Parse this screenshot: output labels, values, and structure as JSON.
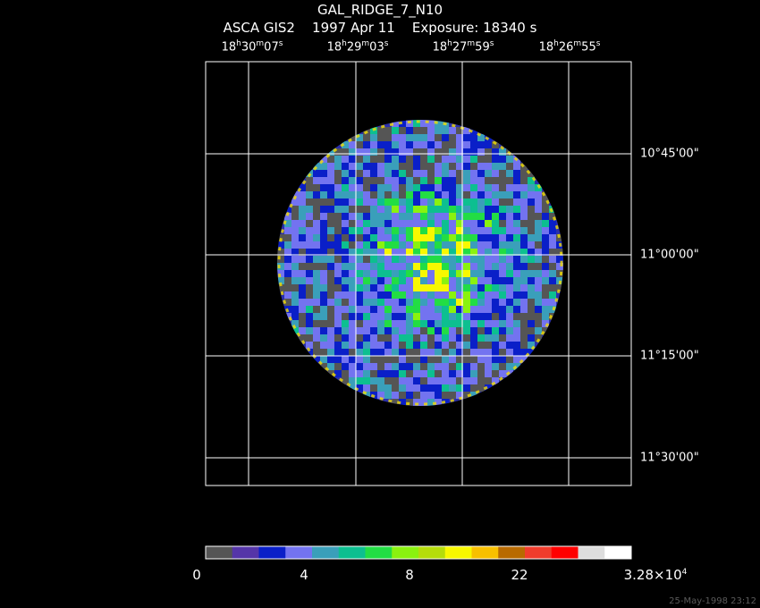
{
  "title": "GAL_RIDGE_7_N10",
  "subtitle": "ASCA GIS2    1997 Apr 11    Exposure: 18340 s",
  "ra_labels": [
    {
      "h": "18",
      "m": "30",
      "s": "07"
    },
    {
      "h": "18",
      "m": "29",
      "s": "03"
    },
    {
      "h": "18",
      "m": "27",
      "s": "59"
    },
    {
      "h": "18",
      "m": "26",
      "s": "55"
    }
  ],
  "dec_labels": [
    "10°45'00\"",
    "11°00'00\"",
    "11°15'00\"",
    "11°30'00\""
  ],
  "colorbar": {
    "colors": [
      "#555555",
      "#5535a8",
      "#0a1fc8",
      "#7373f0",
      "#3a9fba",
      "#0dbf90",
      "#22dd44",
      "#8af20f",
      "#b5dc0a",
      "#f8f800",
      "#f8c000",
      "#b86a00",
      "#f03c2c",
      "#ff0000",
      "#dddddd",
      "#ffffff"
    ],
    "ticks": [
      {
        "label": "0"
      },
      {
        "label": "4"
      },
      {
        "label": "8"
      },
      {
        "label": "22"
      },
      {
        "label": "3.28×10",
        "exp": "4"
      }
    ]
  },
  "footer": "25-May-1998 23:12"
}
